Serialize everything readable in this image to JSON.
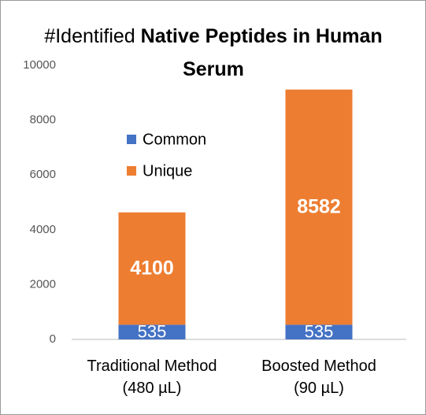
{
  "chart_data": {
    "type": "stacked-bar",
    "title_prefix": "#Identified",
    "title": "Native Peptides in Human Serum",
    "categories": [
      "Traditional Method (480 µL)",
      "Boosted Method (90 µL)"
    ],
    "series": [
      {
        "name": "Common",
        "color": "#4472c4",
        "values": [
          535,
          535
        ]
      },
      {
        "name": "Unique",
        "color": "#ed7d31",
        "values": [
          4100,
          8582
        ]
      }
    ],
    "ylim": [
      0,
      10000
    ],
    "yticks": [
      0,
      2000,
      4000,
      6000,
      8000,
      10000
    ],
    "grid": false,
    "legend": "upper-left"
  }
}
